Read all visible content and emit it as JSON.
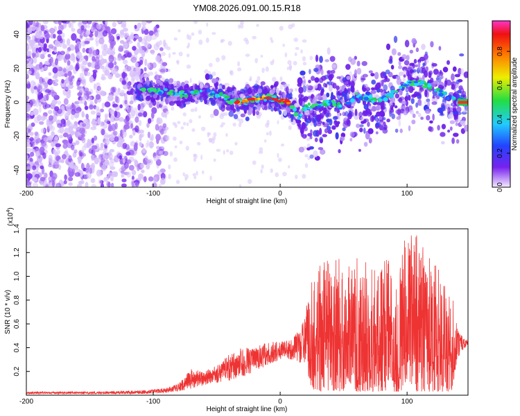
{
  "title": "YM08.2026.091.00.15.R18",
  "colors": {
    "snr_line": "#ee3333",
    "spec_low": "#7722ee",
    "spec_ridge_mid": "#22cc55",
    "spec_ridge_high": "#ee2222"
  },
  "chart_data": [
    {
      "type": "heatmap",
      "name": "spectrogram",
      "xlabel": "Height of straight line (km)",
      "ylabel": "Frequency (Hz)",
      "xlim": [
        -200,
        148
      ],
      "ylim": [
        -50,
        48
      ],
      "xticks": [
        -200,
        -100,
        0,
        100
      ],
      "yticks": [
        -40,
        -20,
        0,
        20,
        40
      ],
      "grid": false,
      "ridge": [
        {
          "x": -120,
          "y": 10
        },
        {
          "x": -110,
          "y": 8
        },
        {
          "x": -100,
          "y": 7
        },
        {
          "x": -90,
          "y": 6
        },
        {
          "x": -80,
          "y": 5
        },
        {
          "x": -70,
          "y": 5
        },
        {
          "x": -60,
          "y": 6
        },
        {
          "x": -50,
          "y": 5
        },
        {
          "x": -40,
          "y": 1
        },
        {
          "x": -30,
          "y": 0
        },
        {
          "x": -20,
          "y": 2
        },
        {
          "x": -10,
          "y": 3
        },
        {
          "x": -5,
          "y": 2
        },
        {
          "x": 0,
          "y": 1
        },
        {
          "x": 5,
          "y": 1
        },
        {
          "x": 10,
          "y": -4
        },
        {
          "x": 15,
          "y": -8
        },
        {
          "x": 20,
          "y": -2
        },
        {
          "x": 30,
          "y": -2
        },
        {
          "x": 40,
          "y": 0
        },
        {
          "x": 50,
          "y": -3
        },
        {
          "x": 60,
          "y": 4
        },
        {
          "x": 70,
          "y": 2
        },
        {
          "x": 80,
          "y": 1
        },
        {
          "x": 90,
          "y": 6
        },
        {
          "x": 100,
          "y": 10
        },
        {
          "x": 110,
          "y": 12
        },
        {
          "x": 120,
          "y": 8
        },
        {
          "x": 130,
          "y": 4
        },
        {
          "x": 140,
          "y": 2
        },
        {
          "x": 148,
          "y": 0
        }
      ]
    },
    {
      "type": "colorbar",
      "name": "amplitude-colorbar",
      "label": "Normalized spectral amplitude",
      "range": [
        0,
        0.98
      ],
      "ticks": [
        "0.0",
        "0.2",
        "0.4",
        "0.6",
        "0.8"
      ]
    },
    {
      "type": "line",
      "name": "snr",
      "xlabel": "Height of straight line (km)",
      "ylabel": "SNR (10 * v/v)",
      "multiplier": "(x10",
      "multiplier_exp": "4",
      "multiplier_close": ")",
      "xlim": [
        -200,
        148
      ],
      "ylim": [
        0,
        1.4
      ],
      "xticks": [
        -200,
        -100,
        0,
        100
      ],
      "yticks": [
        "0.2",
        "0.4",
        "0.6",
        "0.8",
        "1.0",
        "1.2",
        "1.4"
      ],
      "grid": false,
      "envelope": [
        {
          "x": -200,
          "low": 0.01,
          "high": 0.03
        },
        {
          "x": -150,
          "low": 0.01,
          "high": 0.03
        },
        {
          "x": -110,
          "low": 0.01,
          "high": 0.04
        },
        {
          "x": -90,
          "low": 0.02,
          "high": 0.06
        },
        {
          "x": -80,
          "low": 0.03,
          "high": 0.1
        },
        {
          "x": -70,
          "low": 0.05,
          "high": 0.22
        },
        {
          "x": -60,
          "low": 0.08,
          "high": 0.2
        },
        {
          "x": -50,
          "low": 0.1,
          "high": 0.25
        },
        {
          "x": -40,
          "low": 0.12,
          "high": 0.35
        },
        {
          "x": -30,
          "low": 0.15,
          "high": 0.4
        },
        {
          "x": -20,
          "low": 0.2,
          "high": 0.4
        },
        {
          "x": -10,
          "low": 0.25,
          "high": 0.45
        },
        {
          "x": 0,
          "low": 0.3,
          "high": 0.45
        },
        {
          "x": 10,
          "low": 0.3,
          "high": 0.47
        },
        {
          "x": 20,
          "low": 0.25,
          "high": 0.7
        },
        {
          "x": 25,
          "low": 0.05,
          "high": 1.05
        },
        {
          "x": 30,
          "low": 0.03,
          "high": 1.1
        },
        {
          "x": 50,
          "low": 0.03,
          "high": 1.2
        },
        {
          "x": 70,
          "low": 0.03,
          "high": 1.15
        },
        {
          "x": 90,
          "low": 0.03,
          "high": 1.2
        },
        {
          "x": 105,
          "low": 0.03,
          "high": 1.4
        },
        {
          "x": 120,
          "low": 0.03,
          "high": 1.15
        },
        {
          "x": 135,
          "low": 0.03,
          "high": 0.9
        },
        {
          "x": 140,
          "low": 0.3,
          "high": 0.55
        },
        {
          "x": 148,
          "low": 0.42,
          "high": 0.46
        }
      ]
    }
  ]
}
